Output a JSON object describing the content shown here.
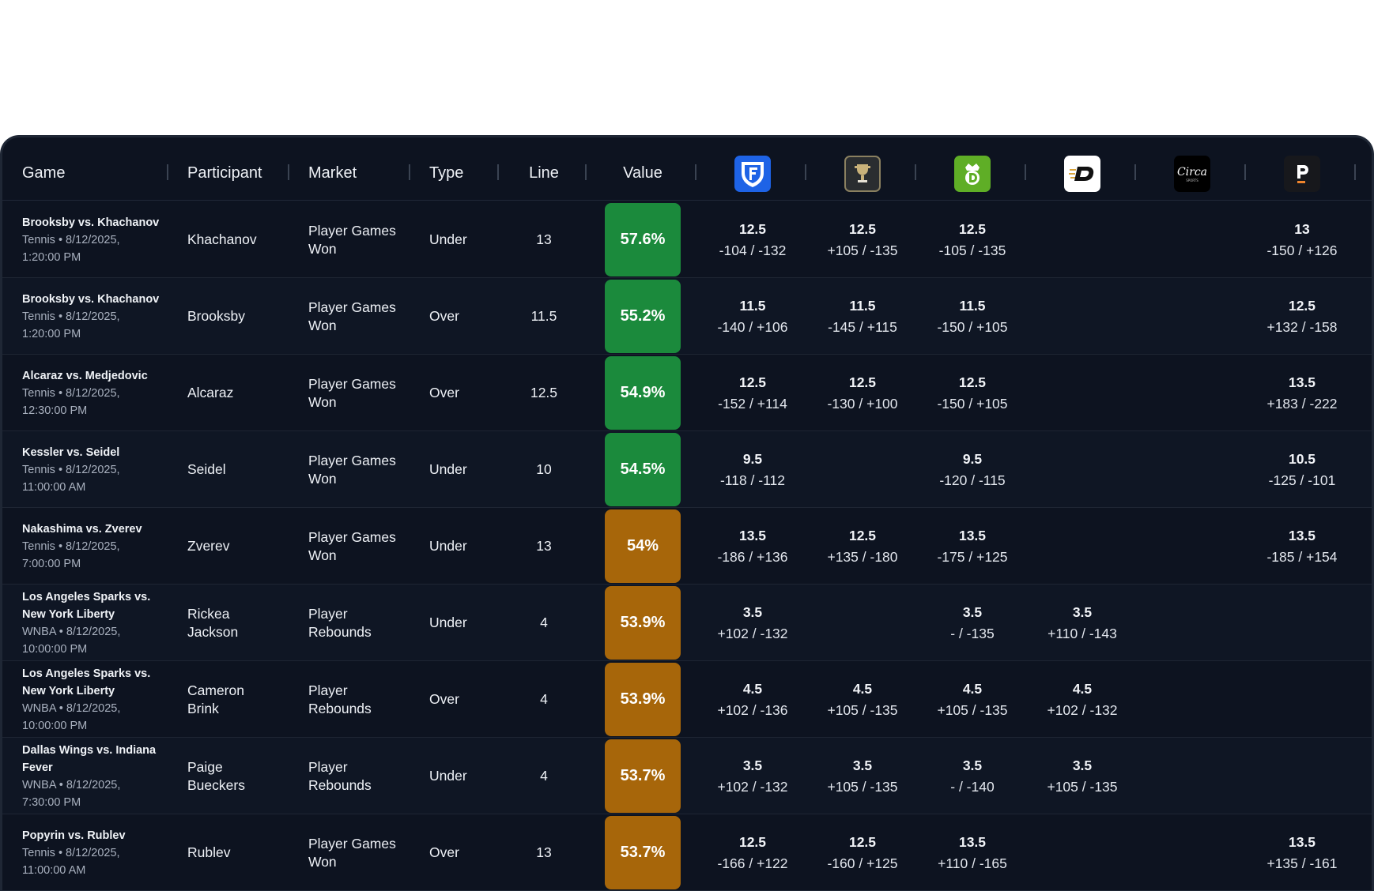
{
  "columns": {
    "game": "Game",
    "participant": "Participant",
    "market": "Market",
    "type": "Type",
    "line": "Line",
    "value": "Value"
  },
  "books": [
    {
      "icon": "fanduel-logo-icon",
      "color": "#1e63e6"
    },
    {
      "icon": "trophy-logo-icon",
      "color": "#2a2d30"
    },
    {
      "icon": "draftkings-logo-icon",
      "color": "#5fae26"
    },
    {
      "icon": "betdexa-logo-icon",
      "color": "#ffffff"
    },
    {
      "icon": "circa-sports-logo-icon",
      "color": "#000000"
    },
    {
      "icon": "prizepicks-logo-icon",
      "color": "#17181c"
    }
  ],
  "colors": {
    "value_green": "#1b8a3c",
    "value_amber": "#a7660a"
  },
  "rows": [
    {
      "game_title": "Brooksby vs. Khachanov",
      "game_meta": [
        "Tennis • 8/12/2025,",
        "1:20:00 PM"
      ],
      "participant": [
        "Khachanov"
      ],
      "market": [
        "Player Games",
        "Won"
      ],
      "type": "Under",
      "line": "13",
      "value": "57.6%",
      "value_color": "green",
      "books": [
        {
          "line": "12.5",
          "odds": "-104 / -132"
        },
        {
          "line": "12.5",
          "odds": "+105 / -135"
        },
        {
          "line": "12.5",
          "odds": "-105 / -135"
        },
        null,
        null,
        {
          "line": "13",
          "odds": "-150 / +126"
        }
      ]
    },
    {
      "game_title": "Brooksby vs. Khachanov",
      "game_meta": [
        "Tennis • 8/12/2025,",
        "1:20:00 PM"
      ],
      "participant": [
        "Brooksby"
      ],
      "market": [
        "Player Games",
        "Won"
      ],
      "type": "Over",
      "line": "11.5",
      "value": "55.2%",
      "value_color": "green",
      "books": [
        {
          "line": "11.5",
          "odds": "-140 / +106"
        },
        {
          "line": "11.5",
          "odds": "-145 / +115"
        },
        {
          "line": "11.5",
          "odds": "-150 / +105"
        },
        null,
        null,
        {
          "line": "12.5",
          "odds": "+132 / -158"
        }
      ]
    },
    {
      "game_title": "Alcaraz vs. Medjedovic",
      "game_meta": [
        "Tennis • 8/12/2025,",
        "12:30:00 PM"
      ],
      "participant": [
        "Alcaraz"
      ],
      "market": [
        "Player Games",
        "Won"
      ],
      "type": "Over",
      "line": "12.5",
      "value": "54.9%",
      "value_color": "green",
      "books": [
        {
          "line": "12.5",
          "odds": "-152 / +114"
        },
        {
          "line": "12.5",
          "odds": "-130 / +100"
        },
        {
          "line": "12.5",
          "odds": "-150 / +105"
        },
        null,
        null,
        {
          "line": "13.5",
          "odds": "+183 / -222"
        }
      ]
    },
    {
      "game_title": "Kessler vs. Seidel",
      "game_meta": [
        "Tennis • 8/12/2025,",
        "11:00:00 AM"
      ],
      "participant": [
        "Seidel"
      ],
      "market": [
        "Player Games",
        "Won"
      ],
      "type": "Under",
      "line": "10",
      "value": "54.5%",
      "value_color": "green",
      "books": [
        {
          "line": "9.5",
          "odds": "-118 / -112"
        },
        null,
        {
          "line": "9.5",
          "odds": "-120 / -115"
        },
        null,
        null,
        {
          "line": "10.5",
          "odds": "-125 / -101"
        }
      ]
    },
    {
      "game_title": "Nakashima vs. Zverev",
      "game_meta": [
        "Tennis • 8/12/2025,",
        "7:00:00 PM"
      ],
      "participant": [
        "Zverev"
      ],
      "market": [
        "Player Games",
        "Won"
      ],
      "type": "Under",
      "line": "13",
      "value": "54%",
      "value_color": "amber",
      "books": [
        {
          "line": "13.5",
          "odds": "-186 / +136"
        },
        {
          "line": "12.5",
          "odds": "+135 / -180"
        },
        {
          "line": "13.5",
          "odds": "-175 / +125"
        },
        null,
        null,
        {
          "line": "13.5",
          "odds": "-185 / +154"
        }
      ]
    },
    {
      "game_title": "Los Angeles Sparks vs. New York Liberty",
      "game_title_lines": [
        "Los Angeles Sparks vs.",
        "New York Liberty"
      ],
      "game_meta": [
        "WNBA • 8/12/2025,",
        "10:00:00 PM"
      ],
      "participant": [
        "Rickea",
        "Jackson"
      ],
      "market": [
        "Player",
        "Rebounds"
      ],
      "type": "Under",
      "line": "4",
      "value": "53.9%",
      "value_color": "amber",
      "books": [
        {
          "line": "3.5",
          "odds": "+102 / -132"
        },
        null,
        {
          "line": "3.5",
          "odds": "- / -135"
        },
        {
          "line": "3.5",
          "odds": "+110 / -143"
        },
        null,
        null
      ]
    },
    {
      "game_title": "Los Angeles Sparks vs. New York Liberty",
      "game_title_lines": [
        "Los Angeles Sparks vs.",
        "New York Liberty"
      ],
      "game_meta": [
        "WNBA • 8/12/2025,",
        "10:00:00 PM"
      ],
      "participant": [
        "Cameron",
        "Brink"
      ],
      "market": [
        "Player",
        "Rebounds"
      ],
      "type": "Over",
      "line": "4",
      "value": "53.9%",
      "value_color": "amber",
      "books": [
        {
          "line": "4.5",
          "odds": "+102 / -136"
        },
        {
          "line": "4.5",
          "odds": "+105 / -135"
        },
        {
          "line": "4.5",
          "odds": "+105 / -135"
        },
        {
          "line": "4.5",
          "odds": "+102 / -132"
        },
        null,
        null
      ]
    },
    {
      "game_title": "Dallas Wings vs. Indiana Fever",
      "game_title_lines": [
        "Dallas Wings vs. Indiana",
        "Fever"
      ],
      "game_meta": [
        "WNBA • 8/12/2025,",
        "7:30:00 PM"
      ],
      "participant": [
        "Paige",
        "Bueckers"
      ],
      "market": [
        "Player",
        "Rebounds"
      ],
      "type": "Under",
      "line": "4",
      "value": "53.7%",
      "value_color": "amber",
      "books": [
        {
          "line": "3.5",
          "odds": "+102 / -132"
        },
        {
          "line": "3.5",
          "odds": "+105 / -135"
        },
        {
          "line": "3.5",
          "odds": "- / -140"
        },
        {
          "line": "3.5",
          "odds": "+105 / -135"
        },
        null,
        null
      ]
    },
    {
      "game_title": "Popyrin vs. Rublev",
      "game_meta": [
        "Tennis • 8/12/2025,",
        "11:00:00 AM"
      ],
      "participant": [
        "Rublev"
      ],
      "market": [
        "Player Games",
        "Won"
      ],
      "type": "Over",
      "line": "13",
      "value": "53.7%",
      "value_color": "amber",
      "books": [
        {
          "line": "12.5",
          "odds": "-166 / +122"
        },
        {
          "line": "12.5",
          "odds": "-160 / +125"
        },
        {
          "line": "13.5",
          "odds": "+110 / -165"
        },
        null,
        null,
        {
          "line": "13.5",
          "odds": "+135 / -161"
        }
      ]
    }
  ]
}
